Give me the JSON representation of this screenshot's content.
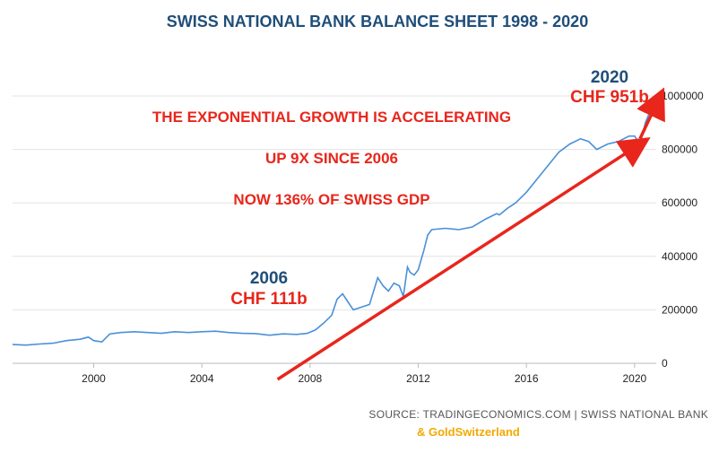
{
  "chart_data": {
    "type": "line",
    "title": "SWISS NATIONAL BANK BALANCE SHEET  1998 - 2020",
    "xlabel": "",
    "ylabel": "",
    "x_ticks": [
      2000,
      2004,
      2008,
      2012,
      2016,
      2020
    ],
    "y_ticks": [
      0,
      200000,
      400000,
      600000,
      800000,
      1000000
    ],
    "xlim": [
      1997,
      2020.8
    ],
    "ylim": [
      0,
      1000000
    ],
    "grid": "horizontal",
    "axis_side": "right",
    "series": [
      {
        "color": "#4a90d9",
        "x": [
          1997.0,
          1997.5,
          1998.0,
          1998.5,
          1999.0,
          1999.5,
          1999.8,
          2000.0,
          2000.3,
          2000.6,
          2001.0,
          2001.5,
          2002.0,
          2002.5,
          2003.0,
          2003.5,
          2004.0,
          2004.5,
          2005.0,
          2005.5,
          2006.0,
          2006.5,
          2007.0,
          2007.5,
          2007.9,
          2008.2,
          2008.5,
          2008.8,
          2009.0,
          2009.2,
          2009.4,
          2009.6,
          2009.9,
          2010.2,
          2010.5,
          2010.7,
          2010.9,
          2011.1,
          2011.3,
          2011.45,
          2011.6,
          2011.7,
          2011.85,
          2012.0,
          2012.2,
          2012.35,
          2012.5,
          2013.0,
          2013.5,
          2014.0,
          2014.5,
          2014.9,
          2015.0,
          2015.3,
          2015.6,
          2016.0,
          2016.4,
          2016.8,
          2017.2,
          2017.6,
          2018.0,
          2018.3,
          2018.6,
          2019.0,
          2019.4,
          2019.8,
          2020.0,
          2020.2,
          2020.4,
          2020.6
        ],
        "values": [
          70000,
          68000,
          72000,
          75000,
          85000,
          90000,
          98000,
          85000,
          80000,
          110000,
          115000,
          118000,
          115000,
          112000,
          118000,
          115000,
          118000,
          120000,
          115000,
          112000,
          111000,
          105000,
          110000,
          108000,
          112000,
          125000,
          150000,
          180000,
          240000,
          260000,
          230000,
          200000,
          210000,
          220000,
          320000,
          290000,
          270000,
          300000,
          290000,
          250000,
          360000,
          340000,
          330000,
          350000,
          420000,
          480000,
          500000,
          505000,
          500000,
          510000,
          540000,
          560000,
          555000,
          580000,
          600000,
          640000,
          690000,
          740000,
          790000,
          820000,
          840000,
          830000,
          800000,
          820000,
          830000,
          850000,
          850000,
          820000,
          900000,
          950000
        ]
      }
    ],
    "annotations": {
      "line1": "THE EXPONENTIAL GROWTH IS ACCELERATING",
      "line2": "UP 9X SINCE 2006",
      "line3": "NOW 136% OF SWISS  GDP",
      "year_2006": "2006",
      "value_2006": "CHF 111b",
      "year_2020": "2020",
      "value_2020": "CHF 951b"
    },
    "trend_arrows": [
      {
        "from": [
          2006.8,
          -60000
        ],
        "to": [
          2020.2,
          820000
        ],
        "color": "#e8261c"
      },
      {
        "from": [
          2020.2,
          840000
        ],
        "to": [
          2020.9,
          990000
        ],
        "color": "#e8261c"
      }
    ],
    "source": "SOURCE: TRADINGECONOMICS.COM | SWISS NATIONAL BANK",
    "credit": "& GoldSwitzerland"
  }
}
